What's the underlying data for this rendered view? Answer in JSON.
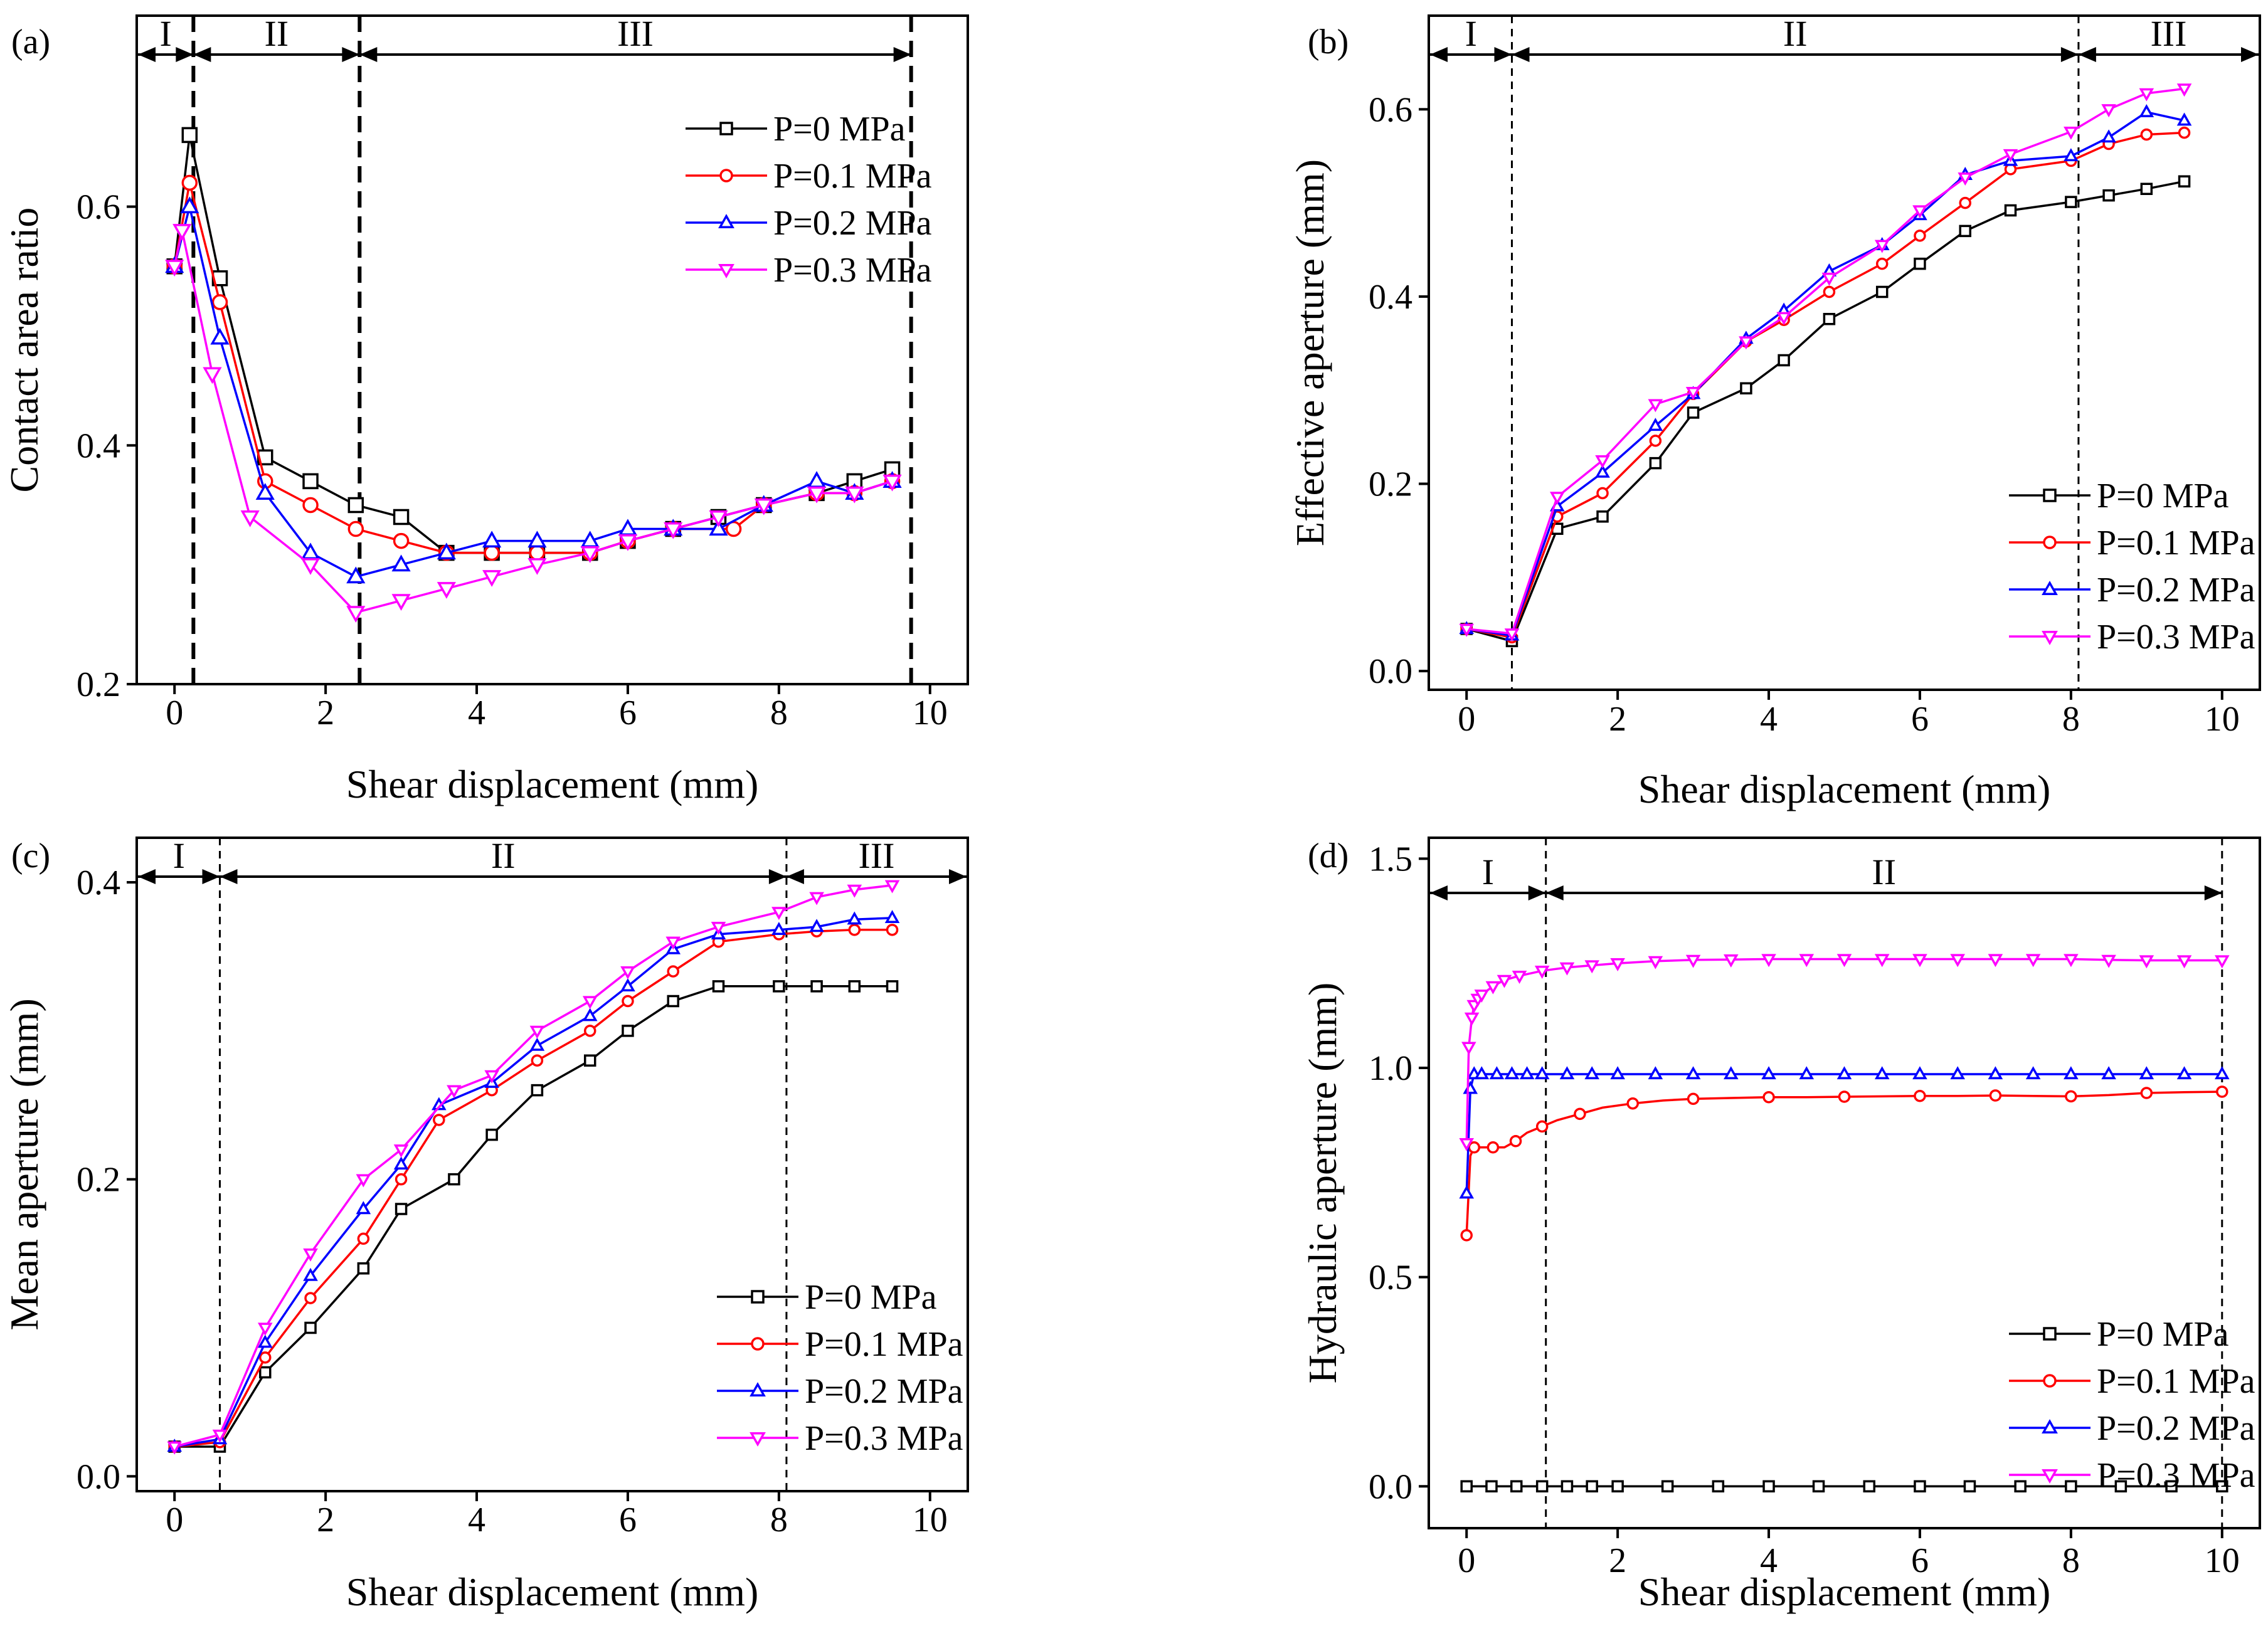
{
  "figure": {
    "series_styles": [
      {
        "name": "P=0 MPa",
        "color": "#000000",
        "marker": "square"
      },
      {
        "name": "P=0.1 MPa",
        "color": "#ff0000",
        "marker": "circle"
      },
      {
        "name": "P=0.2 MPa",
        "color": "#0000ff",
        "marker": "triangle-up"
      },
      {
        "name": "P=0.3 MPa",
        "color": "#ff00ff",
        "marker": "triangle-down"
      }
    ]
  },
  "chart_data": [
    {
      "panel": "(a)",
      "type": "line",
      "title": "",
      "xlabel": "Shear displacement (mm)",
      "ylabel": "Contact area ratio",
      "xlim": [
        -0.5,
        10.5
      ],
      "ylim": [
        0.2,
        0.76
      ],
      "xticks": [
        0,
        2,
        4,
        6,
        8,
        10
      ],
      "xtick_labels": [
        "0",
        "2",
        "4",
        "6",
        "8",
        "10"
      ],
      "yticks": [
        0.2,
        0.4,
        0.6
      ],
      "ytick_labels": [
        "0.2",
        "0.4",
        "0.6"
      ],
      "legend_position": "top-right",
      "region_style": "bold-dashed",
      "regions": {
        "boundaries": [
          0.25,
          2.45,
          9.75
        ],
        "labels": [
          {
            "text": "I",
            "from": -0.5,
            "to": 0.25
          },
          {
            "text": "II",
            "from": 0.25,
            "to": 2.45
          },
          {
            "text": "III",
            "from": 2.45,
            "to": 9.75
          }
        ]
      },
      "series": [
        {
          "name": "P=0 MPa",
          "marker_every": 1,
          "x": [
            0,
            0.2,
            0.6,
            1.2,
            1.8,
            2.4,
            3.0,
            3.6,
            4.2,
            4.8,
            5.5,
            6.0,
            6.6,
            7.2,
            7.8,
            8.5,
            9.0,
            9.5
          ],
          "y": [
            0.55,
            0.66,
            0.54,
            0.39,
            0.37,
            0.35,
            0.34,
            0.31,
            0.31,
            0.31,
            0.31,
            0.32,
            0.33,
            0.34,
            0.35,
            0.36,
            0.37,
            0.38
          ]
        },
        {
          "name": "P=0.1 MPa",
          "marker_every": 1,
          "x": [
            0,
            0.2,
            0.6,
            1.2,
            1.8,
            2.4,
            3.0,
            3.6,
            4.2,
            4.8,
            5.5,
            6.0,
            6.6,
            7.4,
            7.8,
            8.5,
            9.0,
            9.5
          ],
          "y": [
            0.55,
            0.62,
            0.52,
            0.37,
            0.35,
            0.33,
            0.32,
            0.31,
            0.31,
            0.31,
            0.31,
            0.32,
            0.33,
            0.33,
            0.35,
            0.36,
            0.36,
            0.37
          ]
        },
        {
          "name": "P=0.2 MPa",
          "marker_every": 1,
          "x": [
            0,
            0.2,
            0.6,
            1.2,
            1.8,
            2.4,
            3.0,
            3.6,
            4.2,
            4.8,
            5.5,
            6.0,
            6.6,
            7.2,
            7.8,
            8.5,
            9.0,
            9.5
          ],
          "y": [
            0.55,
            0.6,
            0.49,
            0.36,
            0.31,
            0.29,
            0.3,
            0.31,
            0.32,
            0.32,
            0.32,
            0.33,
            0.33,
            0.33,
            0.35,
            0.37,
            0.36,
            0.37
          ]
        },
        {
          "name": "P=0.3 MPa",
          "marker_every": 1,
          "x": [
            0,
            0.1,
            0.5,
            1.0,
            1.8,
            2.4,
            3.0,
            3.6,
            4.2,
            4.8,
            5.5,
            6.0,
            6.6,
            7.2,
            7.8,
            8.5,
            9.0,
            9.5
          ],
          "y": [
            0.55,
            0.58,
            0.46,
            0.34,
            0.3,
            0.26,
            0.27,
            0.28,
            0.29,
            0.3,
            0.31,
            0.32,
            0.33,
            0.34,
            0.35,
            0.36,
            0.36,
            0.37
          ]
        }
      ]
    },
    {
      "panel": "(b)",
      "type": "line",
      "title": "",
      "xlabel": "Shear displacement (mm)",
      "ylabel": "Effective aperture (mm)",
      "xlim": [
        -0.5,
        10.5
      ],
      "ylim": [
        -0.02,
        0.7
      ],
      "xticks": [
        0,
        2,
        4,
        6,
        8,
        10
      ],
      "xtick_labels": [
        "0",
        "2",
        "4",
        "6",
        "8",
        "10"
      ],
      "yticks": [
        0.0,
        0.2,
        0.4,
        0.6
      ],
      "ytick_labels": [
        "0.0",
        "0.2",
        "0.4",
        "0.6"
      ],
      "legend_position": "bottom-right",
      "region_style": "thin-dashed",
      "regions": {
        "boundaries": [
          0.6,
          8.1
        ],
        "labels": [
          {
            "text": "I",
            "from": -0.5,
            "to": 0.6
          },
          {
            "text": "II",
            "from": 0.6,
            "to": 8.1
          },
          {
            "text": "III",
            "from": 8.1,
            "to": 10.5
          }
        ]
      },
      "series": [
        {
          "name": "P=0 MPa",
          "marker_every": 1,
          "x": [
            0,
            0.6,
            1.2,
            1.8,
            2.5,
            3.0,
            3.7,
            4.2,
            4.8,
            5.5,
            6.0,
            6.6,
            7.2,
            8.0,
            8.5,
            9.0,
            9.5
          ],
          "y": [
            0.045,
            0.032,
            0.152,
            0.165,
            0.222,
            0.276,
            0.302,
            0.332,
            0.376,
            0.405,
            0.435,
            0.47,
            0.492,
            0.501,
            0.508,
            0.515,
            0.523
          ]
        },
        {
          "name": "P=0.1 MPa",
          "marker_every": 1,
          "x": [
            0,
            0.6,
            1.2,
            1.8,
            2.5,
            3.0,
            3.7,
            4.2,
            4.8,
            5.5,
            6.0,
            6.6,
            7.2,
            8.0,
            8.5,
            9.0,
            9.5
          ],
          "y": [
            0.045,
            0.036,
            0.165,
            0.19,
            0.246,
            0.296,
            0.352,
            0.375,
            0.405,
            0.435,
            0.465,
            0.5,
            0.536,
            0.545,
            0.563,
            0.573,
            0.575
          ]
        },
        {
          "name": "P=0.2 MPa",
          "marker_every": 1,
          "x": [
            0,
            0.6,
            1.2,
            1.8,
            2.5,
            3.0,
            3.7,
            4.2,
            4.8,
            5.5,
            6.0,
            6.6,
            7.2,
            8.0,
            8.5,
            9.0,
            9.5
          ],
          "y": [
            0.045,
            0.038,
            0.176,
            0.212,
            0.262,
            0.296,
            0.355,
            0.385,
            0.427,
            0.455,
            0.487,
            0.53,
            0.545,
            0.55,
            0.57,
            0.597,
            0.588
          ]
        },
        {
          "name": "P=0.3 MPa",
          "marker_every": 1,
          "x": [
            0,
            0.6,
            1.2,
            1.8,
            2.5,
            3.0,
            3.7,
            4.2,
            4.8,
            5.5,
            6.0,
            6.6,
            7.2,
            8.0,
            8.5,
            9.0,
            9.5
          ],
          "y": [
            0.045,
            0.04,
            0.186,
            0.225,
            0.285,
            0.298,
            0.352,
            0.378,
            0.42,
            0.455,
            0.492,
            0.527,
            0.552,
            0.576,
            0.6,
            0.617,
            0.622
          ]
        }
      ]
    },
    {
      "panel": "(c)",
      "type": "line",
      "title": "",
      "xlabel": "Shear displacement (mm)",
      "ylabel": "Mean aperture (mm)",
      "xlim": [
        -0.5,
        10.5
      ],
      "ylim": [
        -0.01,
        0.43
      ],
      "xticks": [
        0,
        2,
        4,
        6,
        8,
        10
      ],
      "xtick_labels": [
        "0",
        "2",
        "4",
        "6",
        "8",
        "10"
      ],
      "yticks": [
        0.0,
        0.2,
        0.4
      ],
      "ytick_labels": [
        "0.0",
        "0.2",
        "0.4"
      ],
      "legend_position": "bottom-right",
      "region_style": "thin-dashed",
      "regions": {
        "boundaries": [
          0.6,
          8.1
        ],
        "labels": [
          {
            "text": "I",
            "from": -0.5,
            "to": 0.6
          },
          {
            "text": "II",
            "from": 0.6,
            "to": 8.1
          },
          {
            "text": "III",
            "from": 8.1,
            "to": 10.5
          }
        ]
      },
      "series": [
        {
          "name": "P=0 MPa",
          "marker_every": 1,
          "x": [
            0,
            0.6,
            1.2,
            1.8,
            2.5,
            3.0,
            3.7,
            4.2,
            4.8,
            5.5,
            6.0,
            6.6,
            7.2,
            8.0,
            8.5,
            9.0,
            9.5
          ],
          "y": [
            0.02,
            0.02,
            0.07,
            0.1,
            0.14,
            0.18,
            0.2,
            0.23,
            0.26,
            0.28,
            0.3,
            0.32,
            0.33,
            0.33,
            0.33,
            0.33,
            0.33
          ]
        },
        {
          "name": "P=0.1 MPa",
          "marker_every": 1,
          "x": [
            0,
            0.6,
            1.2,
            1.8,
            2.5,
            3.0,
            3.5,
            4.2,
            4.8,
            5.5,
            6.0,
            6.6,
            7.2,
            8.0,
            8.5,
            9.0,
            9.5
          ],
          "y": [
            0.02,
            0.023,
            0.08,
            0.12,
            0.16,
            0.2,
            0.24,
            0.26,
            0.28,
            0.3,
            0.32,
            0.34,
            0.36,
            0.365,
            0.367,
            0.368,
            0.368
          ]
        },
        {
          "name": "P=0.2 MPa",
          "marker_every": 1,
          "x": [
            0,
            0.6,
            1.2,
            1.8,
            2.5,
            3.0,
            3.5,
            4.2,
            4.8,
            5.5,
            6.0,
            6.6,
            7.2,
            8.0,
            8.5,
            9.0,
            9.5
          ],
          "y": [
            0.02,
            0.025,
            0.09,
            0.135,
            0.18,
            0.21,
            0.25,
            0.265,
            0.29,
            0.31,
            0.33,
            0.355,
            0.365,
            0.368,
            0.37,
            0.375,
            0.376
          ]
        },
        {
          "name": "P=0.3 MPa",
          "marker_every": 1,
          "x": [
            0,
            0.6,
            1.2,
            1.8,
            2.5,
            3.0,
            3.7,
            4.2,
            4.8,
            5.5,
            6.0,
            6.6,
            7.2,
            8.0,
            8.5,
            9.0,
            9.5
          ],
          "y": [
            0.02,
            0.028,
            0.1,
            0.15,
            0.2,
            0.22,
            0.26,
            0.27,
            0.3,
            0.32,
            0.34,
            0.36,
            0.37,
            0.38,
            0.39,
            0.395,
            0.398
          ]
        }
      ]
    },
    {
      "panel": "(d)",
      "type": "line",
      "title": "",
      "xlabel": "Shear displacement (mm)",
      "ylabel": "Hydraulic aperture (mm)",
      "xlim": [
        -0.5,
        10.5
      ],
      "ylim": [
        -0.1,
        1.55
      ],
      "xticks": [
        0,
        2,
        4,
        6,
        8,
        10
      ],
      "xtick_labels": [
        "0",
        "2",
        "4",
        "6",
        "8",
        "10"
      ],
      "yticks": [
        0.0,
        0.5,
        1.0,
        1.5
      ],
      "ytick_labels": [
        "0.0",
        "0.5",
        "1.0",
        "1.5"
      ],
      "legend_position": "bottom-right",
      "region_style": "thin-dashed",
      "regions": {
        "boundaries": [
          1.05,
          10.0
        ],
        "labels": [
          {
            "text": "I",
            "from": -0.5,
            "to": 1.05
          },
          {
            "text": "II",
            "from": 1.05,
            "to": 10.0
          }
        ]
      },
      "series": [
        {
          "name": "P=0 MPa",
          "marker_every": 2,
          "x": [
            0,
            0.16,
            0.33,
            0.5,
            0.66,
            0.83,
            1.0,
            1.16,
            1.33,
            1.5,
            1.66,
            1.83,
            2.0,
            2.33,
            2.66,
            3.0,
            3.33,
            3.66,
            4.0,
            4.33,
            4.66,
            5.0,
            5.33,
            5.66,
            6.0,
            6.33,
            6.66,
            7.0,
            7.33,
            7.66,
            8.0,
            8.33,
            8.66,
            9.0,
            9.33,
            9.66,
            10.0
          ],
          "y": [
            0,
            0,
            0,
            0,
            0,
            0,
            0,
            0,
            0,
            0,
            0,
            0,
            0,
            0,
            0,
            0,
            0,
            0,
            0,
            0,
            0,
            0,
            0,
            0,
            0,
            0,
            0,
            0,
            0,
            0,
            0,
            0,
            0,
            0,
            0,
            0,
            0
          ]
        },
        {
          "name": "P=0.1 MPa",
          "marker_every": 2,
          "x": [
            0,
            0.05,
            0.1,
            0.2,
            0.35,
            0.5,
            0.65,
            0.8,
            1.0,
            1.2,
            1.5,
            1.8,
            2.2,
            2.6,
            3.0,
            3.5,
            4.0,
            4.5,
            5.0,
            5.5,
            6.0,
            6.5,
            7.0,
            7.5,
            8.0,
            8.5,
            9.0,
            9.5,
            10.0
          ],
          "y": [
            0.6,
            0.79,
            0.81,
            0.81,
            0.81,
            0.81,
            0.825,
            0.845,
            0.86,
            0.875,
            0.89,
            0.905,
            0.915,
            0.922,
            0.926,
            0.928,
            0.93,
            0.93,
            0.931,
            0.932,
            0.933,
            0.933,
            0.934,
            0.933,
            0.932,
            0.935,
            0.94,
            0.942,
            0.943
          ]
        },
        {
          "name": "P=0.2 MPa",
          "marker_every": 1,
          "x": [
            0,
            0.05,
            0.1,
            0.2,
            0.4,
            0.6,
            0.8,
            1.0,
            1.33,
            1.66,
            2.0,
            2.5,
            3.0,
            3.5,
            4.0,
            4.5,
            5.0,
            5.5,
            6.0,
            6.5,
            7.0,
            7.5,
            8.0,
            8.5,
            9.0,
            9.5,
            10.0
          ],
          "y": [
            0.7,
            0.95,
            0.985,
            0.985,
            0.985,
            0.985,
            0.985,
            0.985,
            0.985,
            0.985,
            0.985,
            0.985,
            0.985,
            0.985,
            0.985,
            0.985,
            0.985,
            0.985,
            0.985,
            0.985,
            0.985,
            0.985,
            0.985,
            0.985,
            0.985,
            0.985,
            0.985
          ]
        },
        {
          "name": "P=0.3 MPa",
          "marker_every": 1,
          "x": [
            0,
            0.03,
            0.07,
            0.1,
            0.15,
            0.2,
            0.35,
            0.5,
            0.7,
            1.0,
            1.33,
            1.66,
            2.0,
            2.5,
            3.0,
            3.5,
            4.0,
            4.5,
            5.0,
            5.5,
            6.0,
            6.5,
            7.0,
            7.5,
            8.0,
            8.5,
            9.0,
            9.5,
            10.0
          ],
          "y": [
            0.82,
            1.05,
            1.12,
            1.15,
            1.165,
            1.175,
            1.195,
            1.21,
            1.22,
            1.232,
            1.24,
            1.245,
            1.25,
            1.255,
            1.258,
            1.259,
            1.26,
            1.26,
            1.26,
            1.26,
            1.26,
            1.26,
            1.26,
            1.26,
            1.26,
            1.258,
            1.257,
            1.257,
            1.257
          ]
        }
      ]
    }
  ]
}
